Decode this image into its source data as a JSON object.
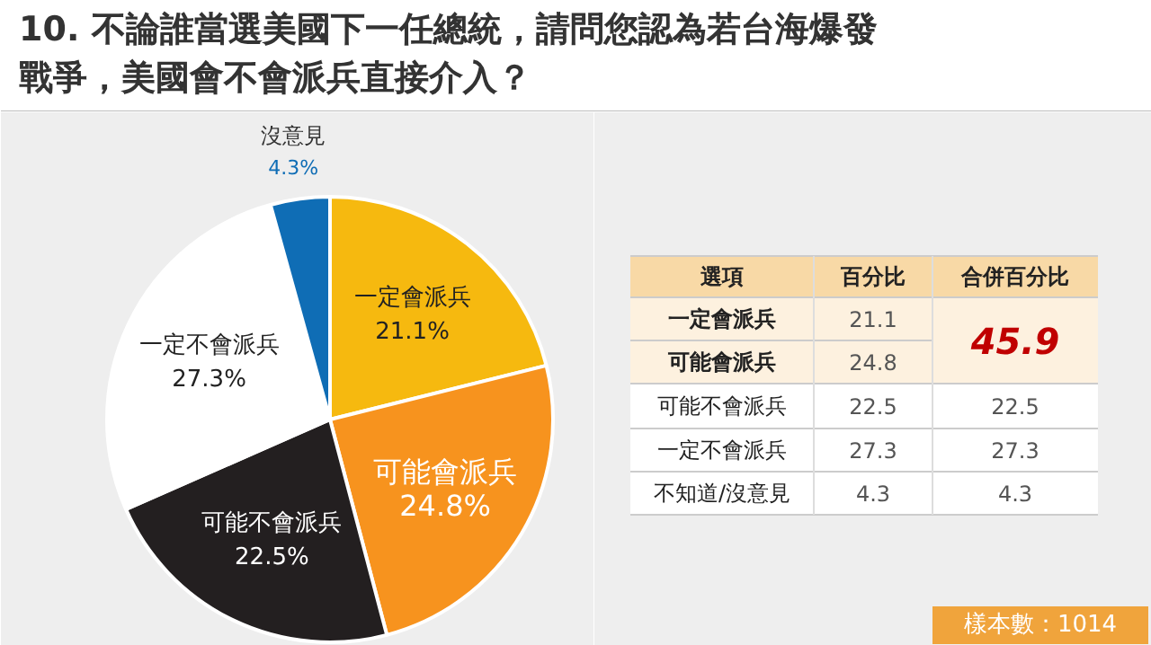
{
  "chart_data": [
    {
      "type": "pie",
      "title": "10. 不論誰當選美國下一任總統，請問您認為若台海爆發戰爭，美國會不會派兵直接介入？",
      "categories": [
        "一定會派兵",
        "可能會派兵",
        "可能不會派兵",
        "一定不會派兵",
        "沒意見"
      ],
      "values": [
        21.1,
        24.8,
        22.5,
        27.3,
        4.3
      ],
      "colors": [
        "#f6b90f",
        "#f7931e",
        "#231f20",
        "#ffffff",
        "#0f6db5"
      ],
      "value_labels": [
        "21.1%",
        "24.8%",
        "22.5%",
        "27.3%",
        "4.3%"
      ]
    },
    {
      "type": "other",
      "annotations": [
        "選項",
        "百分比",
        "合併百分比",
        "一定會派兵",
        "21.1",
        "45.9",
        "可能會派兵",
        "24.8",
        "可能不會派兵",
        "22.5",
        "22.5",
        "一定不會派兵",
        "27.3",
        "27.3",
        "不知道/沒意見",
        "4.3",
        "4.3",
        "樣本數：1014"
      ]
    }
  ]
}
